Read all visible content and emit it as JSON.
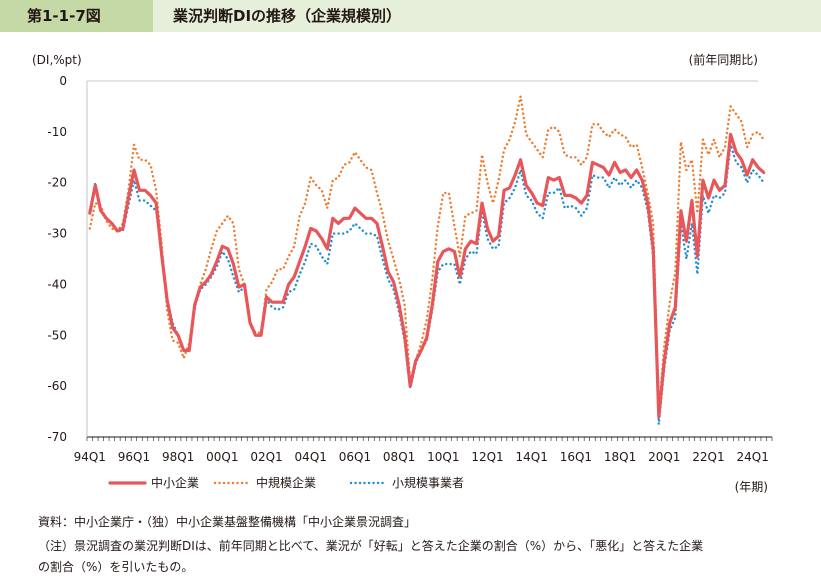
{
  "header": {
    "figure_label": "第1-1-7図",
    "title": "業況判断DIの推移（企業規模別）"
  },
  "colors": {
    "header_label_bg": "#c4d9a6",
    "header_title_bg": "#e6efd9",
    "sme": "#e8565a",
    "medium": "#ee7a2c",
    "small": "#1e8fce"
  },
  "chart_data": {
    "type": "line",
    "ylabel": "(DI,%pt)",
    "ylabel_right": "(前年同期比)",
    "xlabel": "(年期)",
    "ylim": [
      -70,
      0
    ],
    "yticks": [
      0,
      -10,
      -20,
      -30,
      -40,
      -50,
      -60,
      -70
    ],
    "x_start": "1994Q1",
    "x_end": "2025Q1",
    "x_tick_labels": [
      "94Q1",
      "96Q1",
      "98Q1",
      "00Q1",
      "02Q1",
      "04Q1",
      "06Q1",
      "08Q1",
      "10Q1",
      "12Q1",
      "14Q1",
      "16Q1",
      "18Q1",
      "20Q1",
      "22Q1",
      "24Q1"
    ],
    "grid": false,
    "legend_position": "bottom",
    "series": [
      {
        "name": "中小企業",
        "style": "solid",
        "values": [
          -26,
          -20.5,
          -25.5,
          -27,
          -28,
          -29.5,
          -29,
          -23,
          -17.5,
          -21.5,
          -21.5,
          -22.5,
          -24,
          -34,
          -43,
          -48.5,
          -50,
          -53,
          -53,
          -44,
          -40.5,
          -39.5,
          -38,
          -35.5,
          -32.5,
          -33,
          -36,
          -40.5,
          -40,
          -47.5,
          -50,
          -50,
          -42.5,
          -43.5,
          -43.5,
          -43.5,
          -40,
          -38.5,
          -35.5,
          -32.5,
          -29,
          -29.5,
          -31,
          -33,
          -27,
          -28,
          -27,
          -27,
          -25,
          -26,
          -27,
          -27,
          -28,
          -32.5,
          -37.5,
          -39.5,
          -44,
          -50,
          -60,
          -55,
          -53,
          -50.5,
          -44,
          -35.5,
          -33.5,
          -33,
          -33.5,
          -38.5,
          -33,
          -31.5,
          -32,
          -24,
          -29,
          -31.5,
          -30.5,
          -21.5,
          -21,
          -18.5,
          -15.5,
          -20.5,
          -22,
          -24,
          -24.5,
          -19,
          -19.5,
          -19,
          -22.5,
          -22.5,
          -23,
          -24,
          -22.5,
          -16,
          -16.5,
          -17,
          -18.5,
          -16,
          -18,
          -17.5,
          -19,
          -17.5,
          -19.5,
          -24,
          -33,
          -66,
          -55,
          -47.5,
          -44.5,
          -25.5,
          -31.5,
          -23.5,
          -34.5,
          -19.5,
          -23,
          -19.5,
          -21.5,
          -20.5,
          -10.5,
          -14,
          -15.5,
          -18.5,
          -15.5,
          -17,
          -18
        ]
      },
      {
        "name": "中規模企業",
        "style": "dotted",
        "values": [
          -29,
          -24,
          -24.5,
          -27.5,
          -29,
          -29.5,
          -28,
          -21.5,
          -12.5,
          -15.5,
          -15.5,
          -16.5,
          -21.5,
          -32,
          -45,
          -51,
          -51.5,
          -54.5,
          -51.5,
          -44.5,
          -40,
          -37,
          -33,
          -29.5,
          -28,
          -26.5,
          -28,
          -37,
          -40,
          -47.5,
          -49.5,
          -49.5,
          -41,
          -39.5,
          -37,
          -37,
          -34.5,
          -32.5,
          -26.5,
          -24,
          -19,
          -20.5,
          -21.5,
          -25,
          -19.5,
          -19,
          -16.5,
          -16,
          -14,
          -15.5,
          -17,
          -17.5,
          -22,
          -26,
          -31.5,
          -35,
          -39,
          -44,
          -59,
          -55,
          -51.5,
          -47,
          -39,
          -28.5,
          -22,
          -22,
          -28.5,
          -34.5,
          -26.5,
          -26,
          -25.5,
          -14.5,
          -20,
          -24,
          -19.5,
          -13.5,
          -11.5,
          -8,
          -3,
          -10.5,
          -12,
          -13.5,
          -15,
          -9.5,
          -9,
          -10,
          -14.5,
          -15,
          -15,
          -16.5,
          -15,
          -8.5,
          -8.5,
          -10,
          -11,
          -9.5,
          -10.5,
          -11,
          -13,
          -12.5,
          -17,
          -22,
          -28,
          -65,
          -52,
          -43.5,
          -37.5,
          -12,
          -17.5,
          -15.5,
          -26,
          -11.5,
          -14.5,
          -11.5,
          -15,
          -13,
          -5,
          -6.5,
          -8,
          -13,
          -10.5,
          -10,
          -11.5
        ]
      },
      {
        "name": "小規模事業者",
        "style": "dotted",
        "values": [
          -25.5,
          -20,
          -25.5,
          -27,
          -28,
          -29.5,
          -29.5,
          -24.5,
          -19.5,
          -23.5,
          -23.5,
          -24.5,
          -25.5,
          -34,
          -43,
          -47.5,
          -50,
          -53,
          -53,
          -44.5,
          -41,
          -40,
          -38.5,
          -36.5,
          -33.5,
          -35,
          -38.5,
          -41.5,
          -40.5,
          -47.5,
          -50,
          -50,
          -43,
          -44.5,
          -45,
          -44.5,
          -41.5,
          -41,
          -38,
          -35.5,
          -32,
          -32.5,
          -34.5,
          -36,
          -30,
          -30,
          -30,
          -29.5,
          -28,
          -29,
          -30,
          -30,
          -30.5,
          -35,
          -39,
          -41,
          -45.5,
          -51,
          -60.5,
          -55.5,
          -53,
          -51,
          -45,
          -37.5,
          -36,
          -36,
          -36,
          -40,
          -35,
          -33.5,
          -34,
          -25.5,
          -31,
          -33,
          -32.5,
          -24,
          -23,
          -21,
          -17.5,
          -22.5,
          -23.5,
          -26,
          -27,
          -22,
          -22,
          -21,
          -25,
          -24.5,
          -25,
          -26.5,
          -25,
          -18.5,
          -19,
          -19,
          -21,
          -19,
          -20.5,
          -19.5,
          -21,
          -19.5,
          -21,
          -25.5,
          -34.5,
          -67.5,
          -56.5,
          -49,
          -46.5,
          -28,
          -35,
          -28,
          -38,
          -22.5,
          -26,
          -22.5,
          -23,
          -22,
          -12.5,
          -16,
          -17,
          -20,
          -17.5,
          -18.5,
          -20
        ]
      }
    ]
  },
  "notes": {
    "source": "資料：中小企業庁・（独）中小企業基盤整備機構「中小企業景況調査」",
    "note_line1": "（注）景況調査の業況判断DIは、前年同期と比べて、業況が「好転」と答えた企業の割合（%）から、「悪化」と答えた企業",
    "note_line2": "の割合（%）を引いたもの。"
  }
}
